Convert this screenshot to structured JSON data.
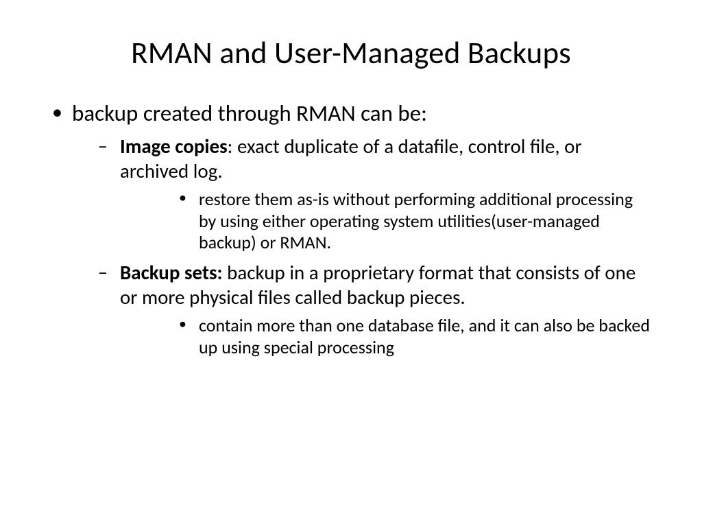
{
  "background_color": "#ffffff",
  "text_color": "#000000",
  "title": "RMAN and User-Managed Backups",
  "title_fontsize": 45,
  "l1_fontsize": 33,
  "l2_fontsize": 29,
  "l3_fontsize": 26,
  "content": {
    "item1": "backup created through RMAN can be:",
    "sub1": {
      "bold": "Image copies",
      "rest": ": exact duplicate of a datafile, control file, or archived log.",
      "detail": "restore them as-is without performing additional processing by using either operating system utilities(user-managed backup) or RMAN."
    },
    "sub2": {
      "bold": "Backup sets:",
      "rest": " backup in a proprietary format that consists of one or more physical files called backup pieces.",
      "detail": "contain more than one database file, and it can also be backed up using special processing"
    }
  }
}
